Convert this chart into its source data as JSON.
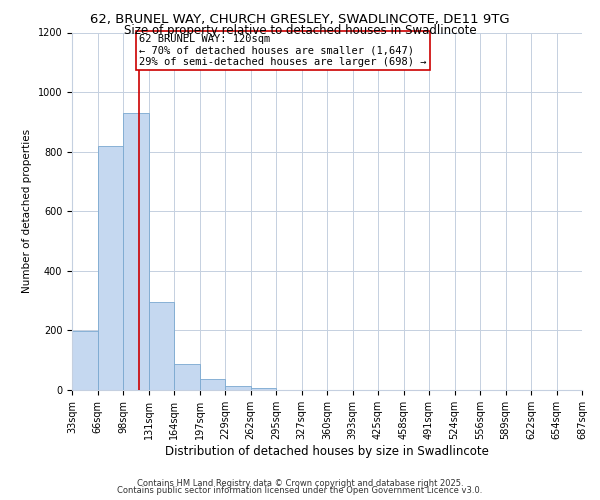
{
  "title": "62, BRUNEL WAY, CHURCH GRESLEY, SWADLINCOTE, DE11 9TG",
  "subtitle": "Size of property relative to detached houses in Swadlincote",
  "xlabel": "Distribution of detached houses by size in Swadlincote",
  "ylabel": "Number of detached properties",
  "bar_left_edges": [
    33,
    66,
    99,
    132,
    165,
    198,
    231,
    264,
    297,
    330,
    363,
    396,
    429,
    462,
    495,
    528,
    561,
    594,
    627,
    660
  ],
  "bar_heights": [
    197,
    820,
    930,
    295,
    88,
    37,
    15,
    7,
    0,
    0,
    0,
    0,
    0,
    0,
    0,
    0,
    0,
    0,
    0,
    0
  ],
  "bin_width": 33,
  "bar_color": "#c5d8f0",
  "bar_edge_color": "#7aa8d0",
  "tick_labels": [
    "33sqm",
    "66sqm",
    "98sqm",
    "131sqm",
    "164sqm",
    "197sqm",
    "229sqm",
    "262sqm",
    "295sqm",
    "327sqm",
    "360sqm",
    "393sqm",
    "425sqm",
    "458sqm",
    "491sqm",
    "524sqm",
    "556sqm",
    "589sqm",
    "622sqm",
    "654sqm",
    "687sqm"
  ],
  "ylim": [
    0,
    1200
  ],
  "yticks": [
    0,
    200,
    400,
    600,
    800,
    1000,
    1200
  ],
  "xlim_min": 33,
  "xlim_max": 693,
  "property_line_x": 120,
  "property_line_color": "#cc0000",
  "annotation_title": "62 BRUNEL WAY: 120sqm",
  "annotation_line1": "← 70% of detached houses are smaller (1,647)",
  "annotation_line2": "29% of semi-detached houses are larger (698) →",
  "annotation_box_color": "#ffffff",
  "annotation_border_color": "#cc0000",
  "background_color": "#ffffff",
  "grid_color": "#c5d0e0",
  "footer1": "Contains HM Land Registry data © Crown copyright and database right 2025.",
  "footer2": "Contains public sector information licensed under the Open Government Licence v3.0.",
  "title_fontsize": 9.5,
  "subtitle_fontsize": 8.5,
  "ylabel_fontsize": 7.5,
  "xlabel_fontsize": 8.5,
  "tick_fontsize": 7,
  "annotation_fontsize": 7.5,
  "footer_fontsize": 6
}
